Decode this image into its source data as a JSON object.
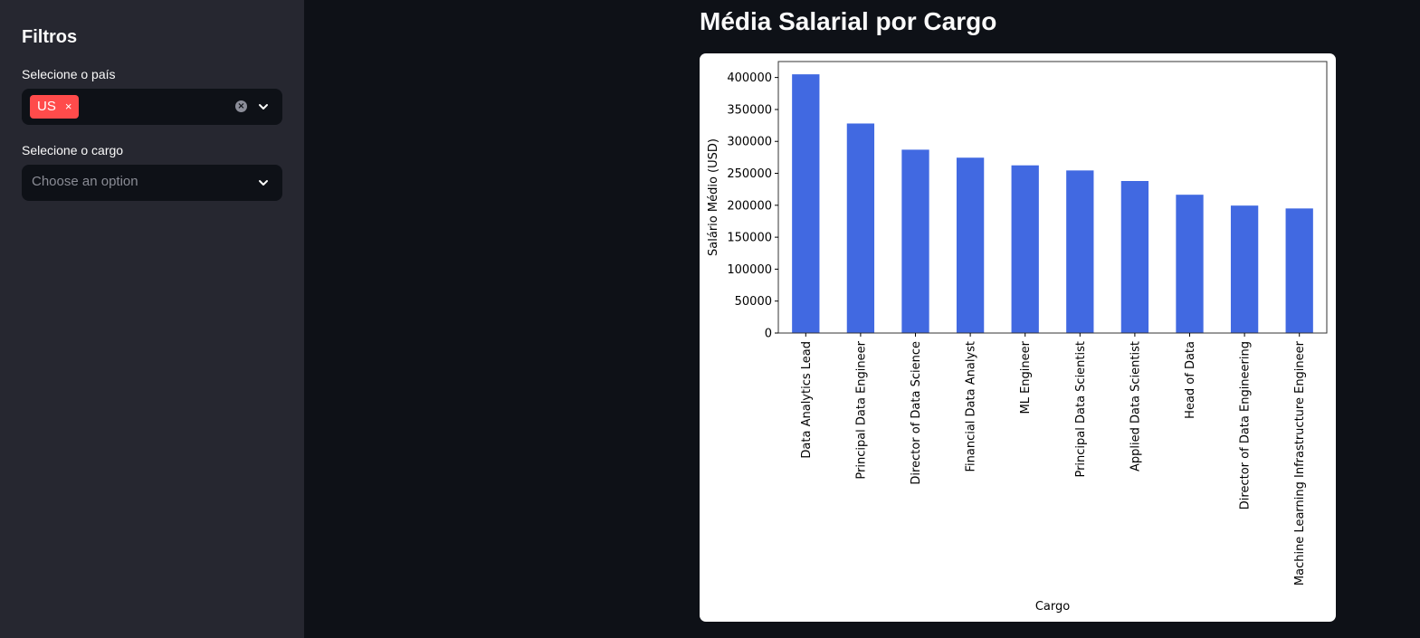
{
  "sidebar": {
    "title": "Filtros",
    "country_label": "Selecione o país",
    "country_tag": "US",
    "tag_remove": "×",
    "clear_glyph": "×",
    "role_label": "Selecione o cargo",
    "role_placeholder": "Choose an option"
  },
  "main": {
    "title": "Média Salarial por Cargo"
  },
  "colors": {
    "bar": "#4169e1",
    "accent": "#ff4b4b"
  },
  "chart_data": {
    "type": "bar",
    "categories": [
      "Data Analytics Lead",
      "Principal Data Engineer",
      "Director of Data Science",
      "Financial Data Analyst",
      "ML Engineer",
      "Principal Data Scientist",
      "Applied Data Scientist",
      "Head of Data",
      "Director of Data Engineering",
      "Machine Learning Infrastructure Engineer"
    ],
    "values": [
      405000,
      328000,
      287000,
      274500,
      262500,
      254500,
      238000,
      216500,
      199500,
      195000
    ],
    "title": "",
    "xlabel": "Cargo",
    "ylabel": "Salário Médio (USD)",
    "ylim": [
      0,
      425000
    ],
    "yticks": [
      0,
      50000,
      100000,
      150000,
      200000,
      250000,
      300000,
      350000,
      400000
    ],
    "ytick_labels": [
      "0",
      "50000",
      "100000",
      "150000",
      "200000",
      "250000",
      "300000",
      "350000",
      "400000"
    ],
    "grid": false,
    "legend": false
  }
}
